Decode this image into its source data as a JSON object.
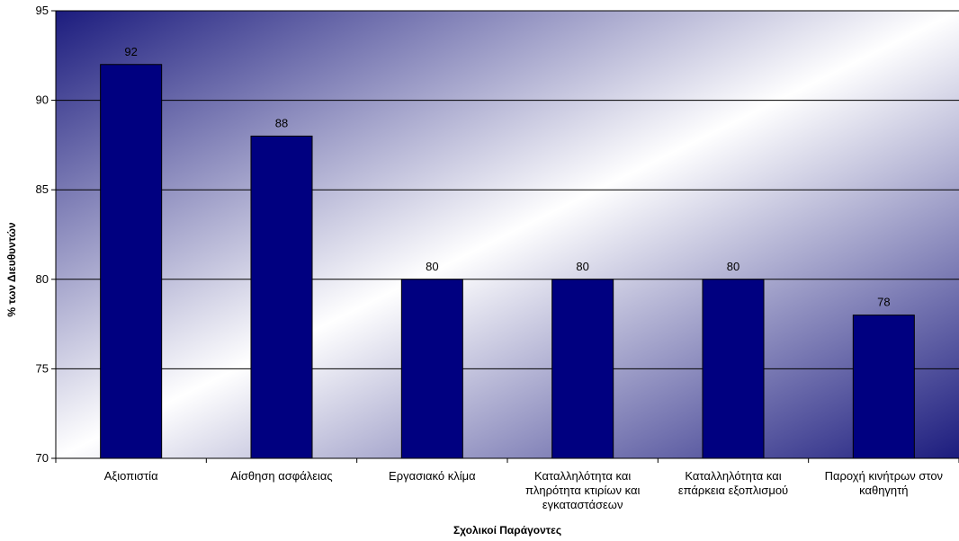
{
  "chart_data": {
    "type": "bar",
    "title": "",
    "xlabel": "Σχολικοί Παράγοντες",
    "ylabel": "% των Διευθυντών",
    "categories": [
      [
        "Αξιοπιστία"
      ],
      [
        "Αίσθηση ασφάλειας"
      ],
      [
        "Εργασιακό κλίμα"
      ],
      [
        "Καταλληλότητα και",
        "πληρότητα κτιρίων και",
        "εγκαταστάσεων"
      ],
      [
        "Καταλληλότητα και",
        "επάρκεια εξοπλισμού"
      ],
      [
        "Παροχή κινήτρων στον",
        "καθηγητή"
      ]
    ],
    "values": [
      92,
      88,
      80,
      80,
      80,
      78
    ],
    "ylim": [
      70,
      95
    ],
    "yticks": [
      70,
      75,
      80,
      85,
      90,
      95
    ],
    "grid": true,
    "legend": "none",
    "colors": {
      "bar_fill": "#000080",
      "bar_stroke": "#000000",
      "background_gradient_dark": "#1c1c7e",
      "background_gradient_light": "#ffffff",
      "gridline": "#000000"
    }
  }
}
